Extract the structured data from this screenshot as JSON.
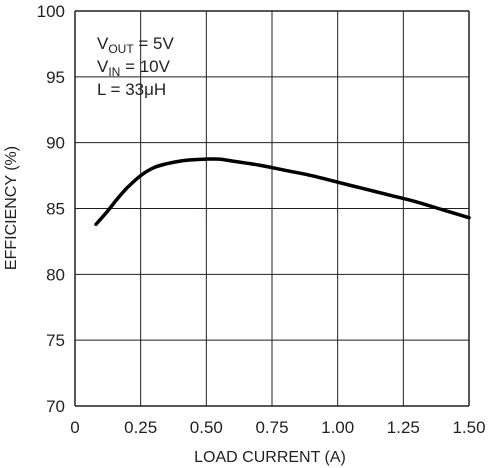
{
  "chart_data": {
    "type": "line",
    "title": "",
    "xlabel": "LOAD CURRENT (A)",
    "ylabel": "EFFICIENCY (%)",
    "xlim": [
      0,
      1.5
    ],
    "ylim": [
      70,
      100
    ],
    "x_ticks": [
      0,
      0.25,
      0.5,
      0.75,
      1.0,
      1.25,
      1.5
    ],
    "x_tick_labels": [
      "0",
      "0.25",
      "0.50",
      "0.75",
      "1.00",
      "1.25",
      "1.50"
    ],
    "y_ticks": [
      70,
      75,
      80,
      85,
      90,
      95,
      100
    ],
    "y_tick_labels": [
      "70",
      "75",
      "80",
      "85",
      "90",
      "95",
      "100"
    ],
    "grid": true,
    "series": [
      {
        "x": [
          0.08,
          0.12,
          0.16,
          0.2,
          0.25,
          0.3,
          0.35,
          0.4,
          0.45,
          0.5,
          0.55,
          0.6,
          0.7,
          0.8,
          0.9,
          1.0,
          1.1,
          1.2,
          1.3,
          1.4,
          1.5
        ],
        "y": [
          83.8,
          84.7,
          85.7,
          86.6,
          87.5,
          88.1,
          88.4,
          88.6,
          88.7,
          88.75,
          88.75,
          88.6,
          88.3,
          87.9,
          87.5,
          87.0,
          86.5,
          86.0,
          85.5,
          84.9,
          84.3
        ]
      }
    ],
    "annotations": [
      {
        "main": "V",
        "sub": "OUT",
        "rest": " = 5V"
      },
      {
        "main": "V",
        "sub": "IN",
        "rest": " = 10V"
      },
      {
        "main": "L = 33μH",
        "sub": "",
        "rest": ""
      }
    ],
    "line_color": "#000000",
    "grid_color": "#231f20"
  }
}
